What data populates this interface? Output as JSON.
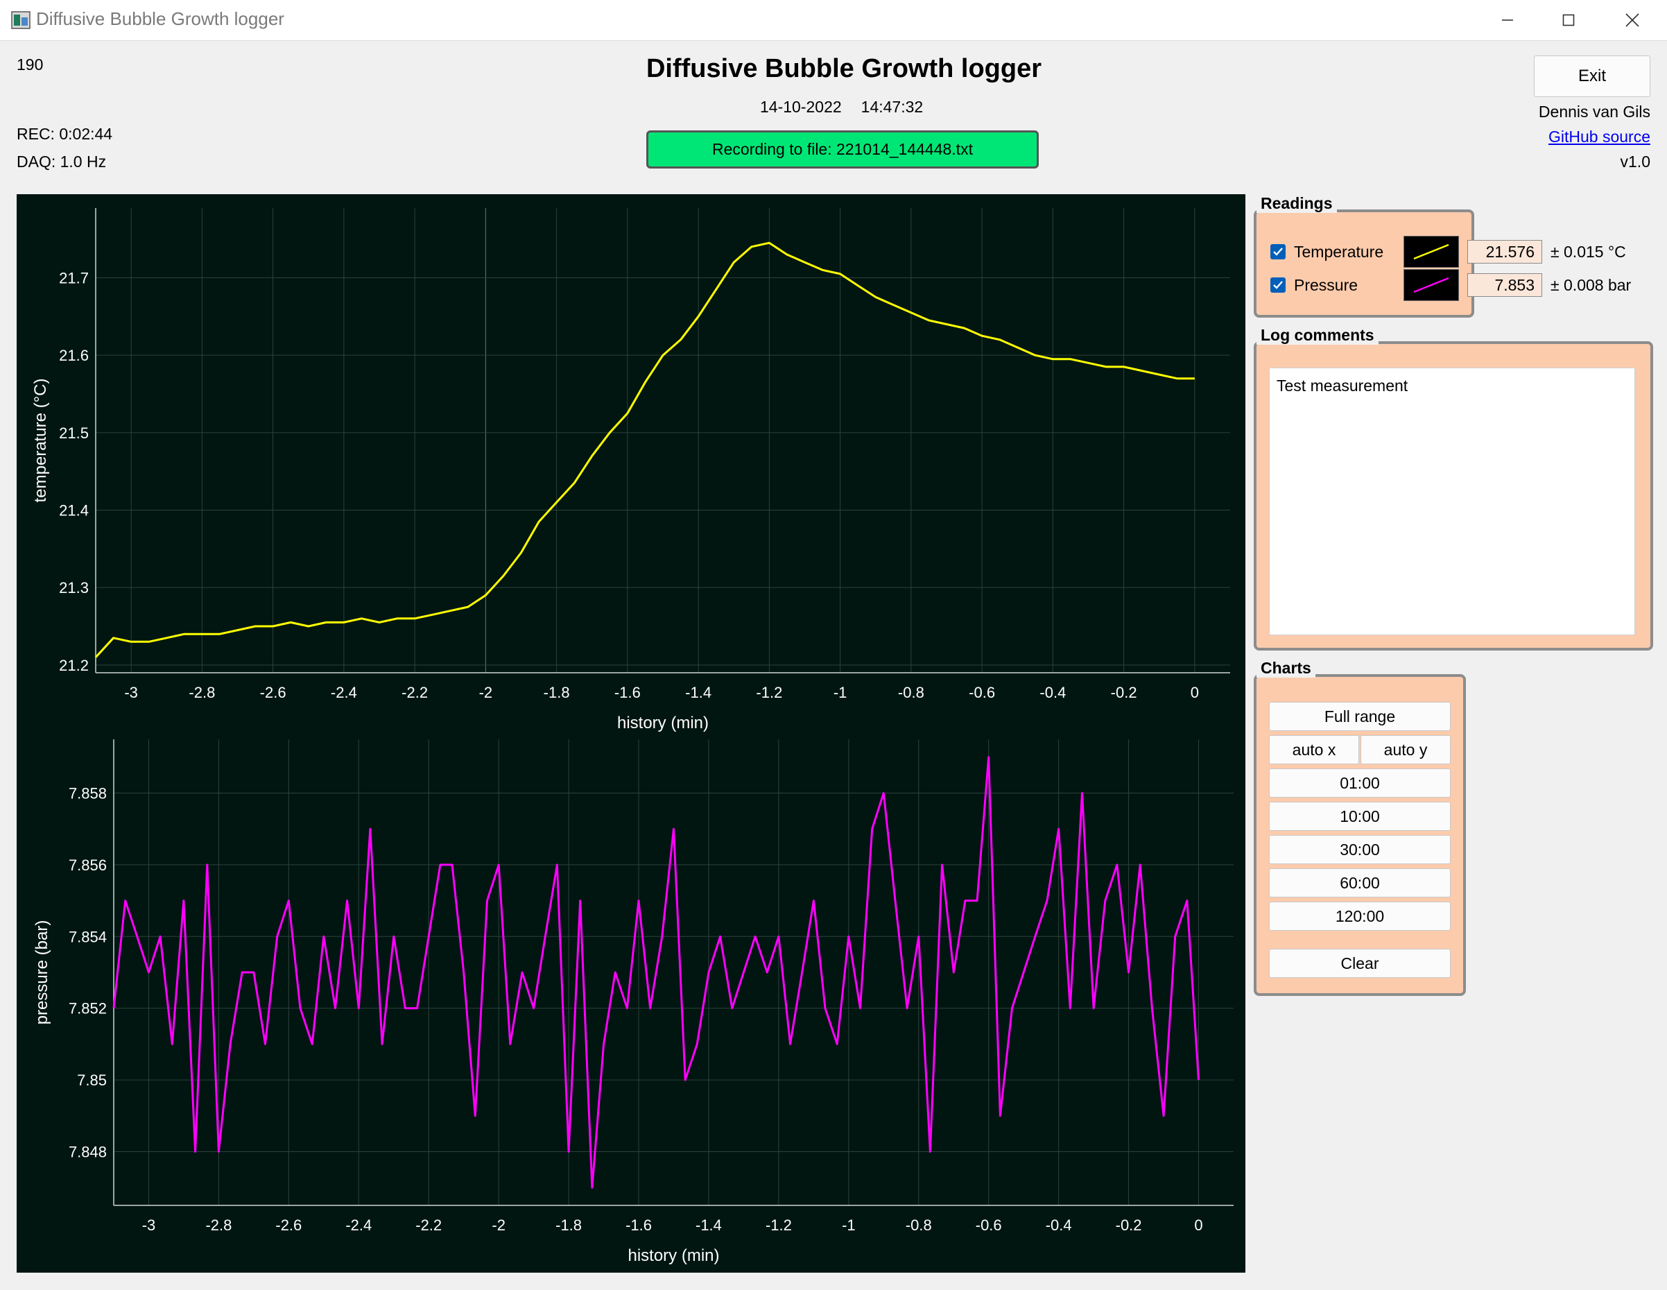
{
  "window": {
    "title": "Diffusive Bubble Growth logger"
  },
  "header": {
    "counter": "190",
    "title": "Diffusive Bubble Growth logger",
    "date": "14-10-2022",
    "time": "14:47:32",
    "rec": "REC: 0:02:44",
    "daq": "DAQ: 1.0 Hz",
    "recording_banner": "Recording to file: 221014_144448.txt",
    "exit_label": "Exit",
    "author": "Dennis van Gils",
    "github_label": "GitHub source",
    "version": "v1.0"
  },
  "colors": {
    "temperature": "#ffff00",
    "pressure": "#ff00ff",
    "panel": "#fccbac",
    "recording": "#00e676",
    "plot_bg": "#011611"
  },
  "readings": {
    "title": "Readings",
    "temperature": {
      "label": "Temperature",
      "checked": true,
      "value": "21.576",
      "unc": "± 0.015 °C"
    },
    "pressure": {
      "label": "Pressure",
      "checked": true,
      "value": "7.853",
      "unc": "± 0.008 bar"
    }
  },
  "log_comments": {
    "title": "Log comments",
    "text": "Test measurement"
  },
  "charts_panel": {
    "title": "Charts",
    "full_range": "Full range",
    "auto_x": "auto x",
    "auto_y": "auto y",
    "ranges": [
      "01:00",
      "10:00",
      "30:00",
      "60:00",
      "120:00"
    ],
    "clear": "Clear"
  },
  "chart_data": [
    {
      "type": "line",
      "xlabel": "history (min)",
      "ylabel": "temperature (°C)",
      "xlim": [
        -3.1,
        0.1
      ],
      "ylim": [
        21.19,
        21.79
      ],
      "xticks": [
        "-3",
        "-2.8",
        "-2.6",
        "-2.4",
        "-2.2",
        "-2",
        "-1.8",
        "-1.6",
        "-1.4",
        "-1.2",
        "-1",
        "-0.8",
        "-0.6",
        "-0.4",
        "-0.2",
        "0"
      ],
      "yticks": [
        "21.2",
        "21.3",
        "21.4",
        "21.5",
        "21.6",
        "21.7"
      ],
      "grid": true,
      "series": [
        {
          "color": "#ffff00",
          "x": [
            -3.1,
            -3.05,
            -3.0,
            -2.95,
            -2.9,
            -2.85,
            -2.8,
            -2.75,
            -2.7,
            -2.65,
            -2.6,
            -2.55,
            -2.5,
            -2.45,
            -2.4,
            -2.35,
            -2.3,
            -2.25,
            -2.2,
            -2.15,
            -2.1,
            -2.05,
            -2.0,
            -1.95,
            -1.9,
            -1.85,
            -1.8,
            -1.75,
            -1.7,
            -1.65,
            -1.6,
            -1.55,
            -1.5,
            -1.45,
            -1.4,
            -1.35,
            -1.3,
            -1.25,
            -1.2,
            -1.15,
            -1.1,
            -1.05,
            -1.0,
            -0.95,
            -0.9,
            -0.85,
            -0.8,
            -0.75,
            -0.7,
            -0.65,
            -0.6,
            -0.55,
            -0.5,
            -0.45,
            -0.4,
            -0.35,
            -0.3,
            -0.25,
            -0.2,
            -0.15,
            -0.1,
            -0.05,
            0.0
          ],
          "y": [
            21.21,
            21.235,
            21.23,
            21.23,
            21.235,
            21.24,
            21.24,
            21.24,
            21.245,
            21.25,
            21.25,
            21.255,
            21.25,
            21.255,
            21.255,
            21.26,
            21.255,
            21.26,
            21.26,
            21.265,
            21.27,
            21.275,
            21.29,
            21.315,
            21.345,
            21.385,
            21.41,
            21.435,
            21.47,
            21.5,
            21.525,
            21.565,
            21.6,
            21.62,
            21.65,
            21.685,
            21.72,
            21.74,
            21.745,
            21.73,
            21.72,
            21.71,
            21.705,
            21.69,
            21.675,
            21.665,
            21.655,
            21.645,
            21.64,
            21.635,
            21.625,
            21.62,
            21.61,
            21.6,
            21.595,
            21.595,
            21.59,
            21.585,
            21.585,
            21.58,
            21.575,
            21.57,
            21.57
          ]
        }
      ]
    },
    {
      "type": "line",
      "xlabel": "history (min)",
      "ylabel": "pressure (bar)",
      "xlim": [
        -3.1,
        0.1
      ],
      "ylim": [
        7.8465,
        7.8595
      ],
      "xticks": [
        "-3",
        "-2.8",
        "-2.6",
        "-2.4",
        "-2.2",
        "-2",
        "-1.8",
        "-1.6",
        "-1.4",
        "-1.2",
        "-1",
        "-0.8",
        "-0.6",
        "-0.4",
        "-0.2",
        "0"
      ],
      "yticks": [
        "7.848",
        "7.85",
        "7.852",
        "7.854",
        "7.856",
        "7.858"
      ],
      "grid": true,
      "series": [
        {
          "color": "#ff00ff",
          "x": [
            -3.1,
            -3.067,
            -3.033,
            -3.0,
            -2.967,
            -2.933,
            -2.9,
            -2.867,
            -2.833,
            -2.8,
            -2.767,
            -2.733,
            -2.7,
            -2.667,
            -2.633,
            -2.6,
            -2.567,
            -2.533,
            -2.5,
            -2.467,
            -2.433,
            -2.4,
            -2.367,
            -2.333,
            -2.3,
            -2.267,
            -2.233,
            -2.2,
            -2.167,
            -2.133,
            -2.1,
            -2.067,
            -2.033,
            -2.0,
            -1.967,
            -1.933,
            -1.9,
            -1.867,
            -1.833,
            -1.8,
            -1.767,
            -1.733,
            -1.7,
            -1.667,
            -1.633,
            -1.6,
            -1.567,
            -1.533,
            -1.5,
            -1.467,
            -1.433,
            -1.4,
            -1.367,
            -1.333,
            -1.3,
            -1.267,
            -1.233,
            -1.2,
            -1.167,
            -1.133,
            -1.1,
            -1.067,
            -1.033,
            -1.0,
            -0.967,
            -0.933,
            -0.9,
            -0.867,
            -0.833,
            -0.8,
            -0.767,
            -0.733,
            -0.7,
            -0.667,
            -0.633,
            -0.6,
            -0.567,
            -0.533,
            -0.5,
            -0.467,
            -0.433,
            -0.4,
            -0.367,
            -0.333,
            -0.3,
            -0.267,
            -0.233,
            -0.2,
            -0.167,
            -0.133,
            -0.1,
            -0.067,
            -0.033,
            0.0
          ],
          "y": [
            7.852,
            7.855,
            7.854,
            7.853,
            7.854,
            7.851,
            7.855,
            7.848,
            7.856,
            7.848,
            7.851,
            7.853,
            7.853,
            7.851,
            7.854,
            7.855,
            7.852,
            7.851,
            7.854,
            7.852,
            7.855,
            7.852,
            7.857,
            7.851,
            7.854,
            7.852,
            7.852,
            7.854,
            7.856,
            7.856,
            7.853,
            7.849,
            7.855,
            7.856,
            7.851,
            7.853,
            7.852,
            7.854,
            7.856,
            7.848,
            7.855,
            7.847,
            7.851,
            7.853,
            7.852,
            7.855,
            7.852,
            7.854,
            7.857,
            7.85,
            7.851,
            7.853,
            7.854,
            7.852,
            7.853,
            7.854,
            7.853,
            7.854,
            7.851,
            7.853,
            7.855,
            7.852,
            7.851,
            7.854,
            7.852,
            7.857,
            7.858,
            7.855,
            7.852,
            7.854,
            7.848,
            7.856,
            7.853,
            7.855,
            7.855,
            7.859,
            7.849,
            7.852,
            7.853,
            7.854,
            7.855,
            7.857,
            7.852,
            7.858,
            7.852,
            7.855,
            7.856,
            7.853,
            7.856,
            7.852,
            7.849,
            7.854,
            7.855,
            7.85
          ]
        }
      ]
    }
  ]
}
